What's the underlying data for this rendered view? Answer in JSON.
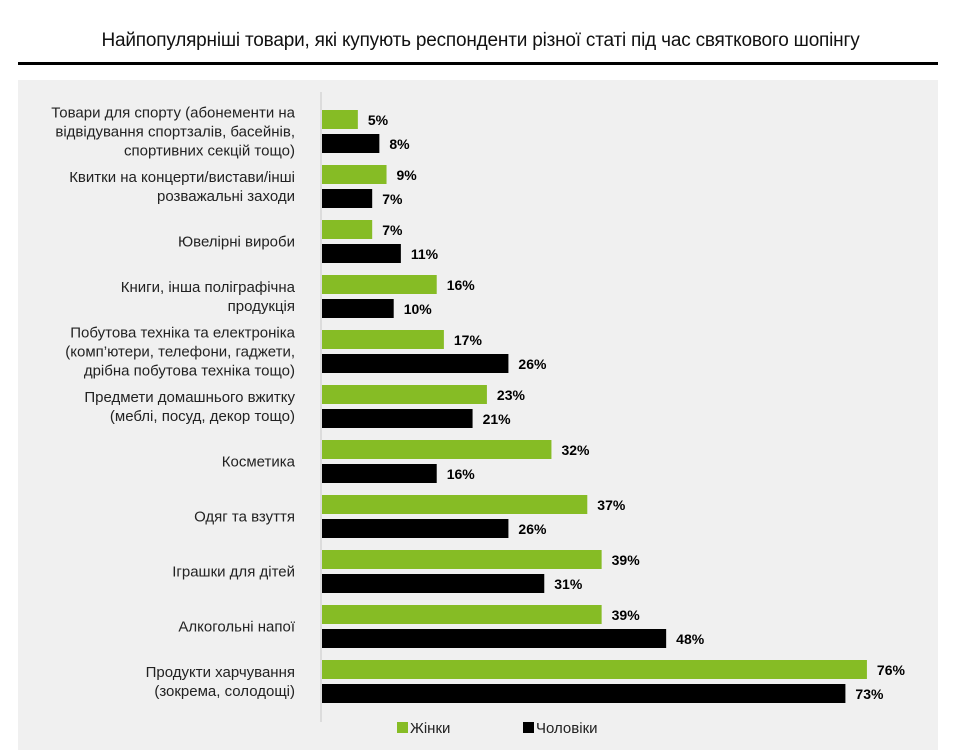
{
  "chart_data": {
    "type": "bar",
    "orientation": "horizontal",
    "title": "Найпопулярніші товари, які купують респонденти різної статі під час святкового шопінгу",
    "categories": [
      [
        "Товари для спорту (абонементи на",
        "відвідування спортзалів, басейнів,",
        "спортивних секцій тощо)"
      ],
      [
        "Квитки на концерти/вистави/інші",
        "розважальні заходи"
      ],
      [
        "Ювелірні вироби"
      ],
      [
        "Книги, інша поліграфічна",
        "продукція"
      ],
      [
        "Побутова техніка та електроніка",
        "(комп’ютери, телефони, гаджети,",
        "дрібна побутова техніка тощо)"
      ],
      [
        "Предмети домашнього вжитку",
        "(меблі, посуд, декор тощо)"
      ],
      [
        "Косметика"
      ],
      [
        "Одяг та взуття"
      ],
      [
        "Іграшки для дітей"
      ],
      [
        "Алкогольні напої"
      ],
      [
        "Продукти харчування",
        "(зокрема, солодощі)"
      ]
    ],
    "series": [
      {
        "name": "Жінки",
        "color": "#86bc25",
        "values": [
          5,
          9,
          7,
          16,
          17,
          23,
          32,
          37,
          39,
          39,
          76
        ]
      },
      {
        "name": "Чоловіки",
        "color": "#000000",
        "values": [
          8,
          7,
          11,
          10,
          26,
          21,
          16,
          26,
          31,
          48,
          73
        ]
      }
    ],
    "value_suffix": "%",
    "xlim": [
      0,
      80
    ],
    "legend": "bottom-center"
  }
}
